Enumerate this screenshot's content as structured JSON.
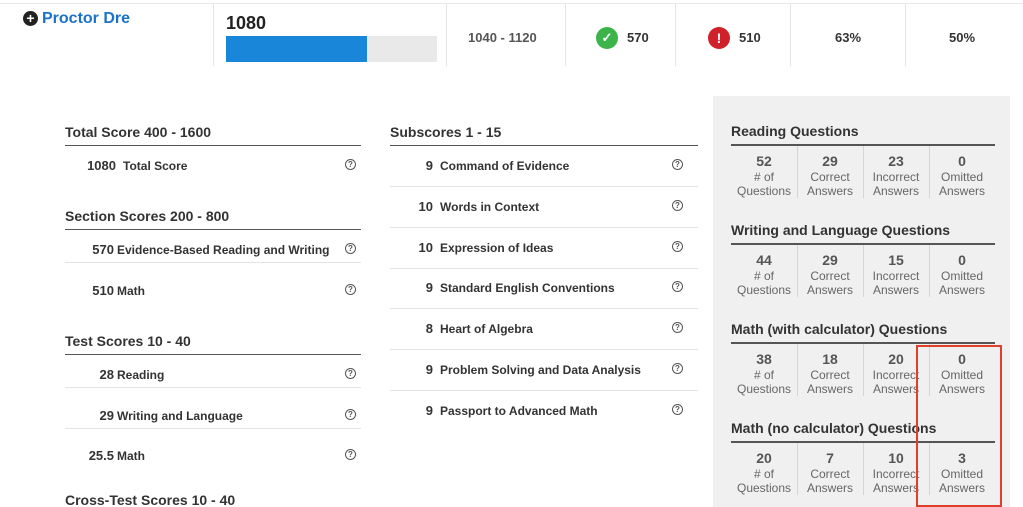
{
  "header": {
    "name": "Proctor Dre",
    "score": 1080,
    "range": "1040 - 1120",
    "correct": 570,
    "incorrect": 510,
    "percent_1": "63%",
    "percent_2": "50%"
  },
  "left_sections": [
    {
      "title": "Total Score 400 - 1600",
      "rows": [
        [
          1080,
          "Total Score"
        ]
      ]
    },
    {
      "title": "Section Scores 200 - 800",
      "rows": [
        [
          570,
          "Evidence-Based Reading and Writing"
        ],
        [
          510,
          "Math"
        ]
      ]
    },
    {
      "title": "Test Scores 10 - 40",
      "rows": [
        [
          28,
          "Reading"
        ],
        [
          29,
          "Writing and Language"
        ],
        [
          25.5,
          "Math"
        ]
      ]
    },
    {
      "title": "Cross-Test Scores 10 - 40",
      "rows": []
    }
  ],
  "subscores": {
    "title": "Subscores 1 - 15",
    "rows": [
      [
        9,
        "Command of Evidence"
      ],
      [
        10,
        "Words in Context"
      ],
      [
        10,
        "Expression of Ideas"
      ],
      [
        9,
        "Standard English Conventions"
      ],
      [
        8,
        "Heart of Algebra"
      ],
      [
        9,
        "Problem Solving and Data Analysis"
      ],
      [
        9,
        "Passport to Advanced Math"
      ]
    ]
  },
  "answer_groups": [
    {
      "title": "Reading Questions",
      "values": [
        52,
        29,
        23,
        0
      ]
    },
    {
      "title": "Writing and Language Questions",
      "values": [
        44,
        29,
        15,
        0
      ]
    },
    {
      "title": "Math (with calculator) Questions",
      "values": [
        38,
        18,
        20,
        0
      ]
    },
    {
      "title": "Math (no calculator) Questions",
      "values": [
        20,
        7,
        10,
        3
      ]
    }
  ],
  "answer_labels": [
    [
      "# of",
      "Questions"
    ],
    [
      "Correct",
      "Answers"
    ],
    [
      "Incorrect",
      "Answers"
    ],
    [
      "Omitted",
      "Answers"
    ]
  ]
}
